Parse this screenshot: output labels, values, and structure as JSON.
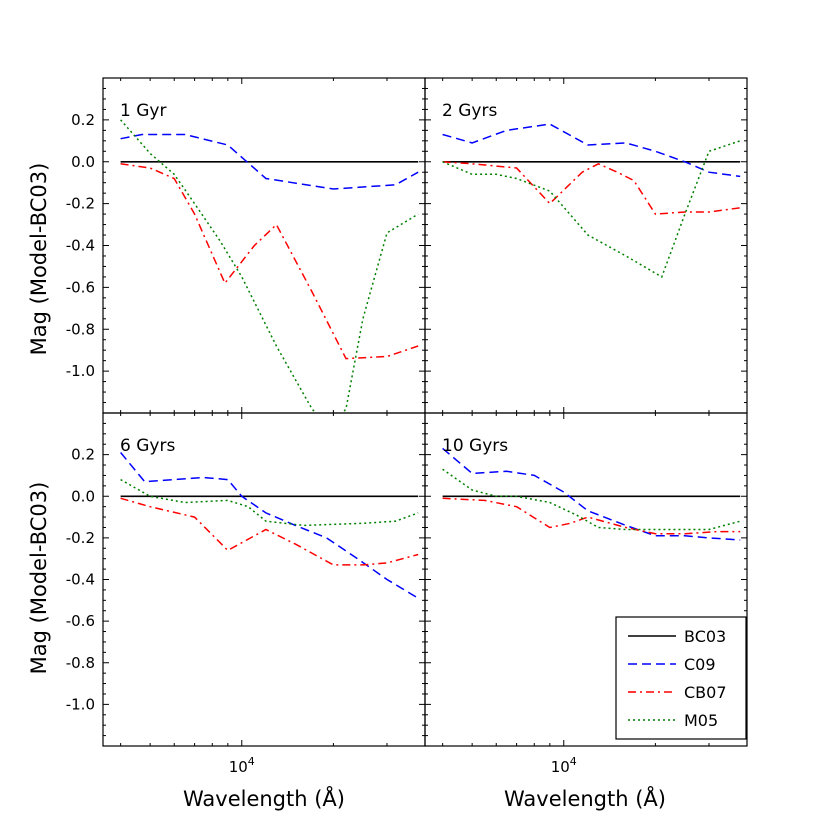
{
  "chart_data": {
    "type": "line",
    "ylabel": "Mag (Model-BC03)",
    "xlabel": "Wavelength (Å)",
    "x_scale": "log",
    "xlim": [
      3500,
      40000
    ],
    "ylim": [
      -1.2,
      0.4
    ],
    "y_ticks": [
      "0.2",
      "0.0",
      "-0.2",
      "-0.4",
      "-0.6",
      "-0.8",
      "-1.0"
    ],
    "y_tick_values": [
      0.2,
      0.0,
      -0.2,
      -0.4,
      -0.6,
      -0.8,
      -1.0
    ],
    "x_tick_label": "10",
    "x_tick_exponent": "4",
    "x_tick_value": 10000,
    "legend_position": "lower right",
    "legend": [
      {
        "name": "BC03",
        "color": "#000000",
        "style": "solid"
      },
      {
        "name": "C09",
        "color": "#0000ff",
        "style": "dashed"
      },
      {
        "name": "CB07",
        "color": "#ff0000",
        "style": "dashdot"
      },
      {
        "name": "M05",
        "color": "#008000",
        "style": "dotted"
      }
    ],
    "panels": [
      {
        "label": "1 Gyr",
        "series": [
          {
            "name": "BC03",
            "x": [
              4000,
              38000
            ],
            "y": [
              0.0,
              0.0
            ]
          },
          {
            "name": "C09",
            "x": [
              4000,
              4700,
              5500,
              6500,
              9000,
              12000,
              20000,
              32000,
              38000
            ],
            "y": [
              0.11,
              0.13,
              0.13,
              0.13,
              0.08,
              -0.08,
              -0.13,
              -0.11,
              -0.05
            ]
          },
          {
            "name": "CB07",
            "x": [
              4000,
              5000,
              6000,
              7000,
              8800,
              11000,
              13000,
              17000,
              22000,
              30000,
              38000
            ],
            "y": [
              -0.01,
              -0.03,
              -0.08,
              -0.25,
              -0.58,
              -0.4,
              -0.3,
              -0.62,
              -0.94,
              -0.93,
              -0.88
            ]
          },
          {
            "name": "M05",
            "x": [
              4000,
              5000,
              6000,
              7000,
              8500,
              10000,
              13000,
              17000,
              19500,
              22000,
              25000,
              30000,
              38000
            ],
            "y": [
              0.2,
              0.04,
              -0.06,
              -0.2,
              -0.38,
              -0.55,
              -0.88,
              -1.18,
              -1.28,
              -1.18,
              -0.75,
              -0.34,
              -0.25
            ]
          }
        ]
      },
      {
        "label": "2 Gyrs",
        "series": [
          {
            "name": "BC03",
            "x": [
              4000,
              38000
            ],
            "y": [
              0.0,
              0.0
            ]
          },
          {
            "name": "C09",
            "x": [
              4000,
              5000,
              6500,
              9000,
              12000,
              16000,
              20000,
              25000,
              30000,
              38000
            ],
            "y": [
              0.13,
              0.09,
              0.15,
              0.18,
              0.08,
              0.09,
              0.05,
              0.0,
              -0.05,
              -0.07
            ]
          },
          {
            "name": "CB07",
            "x": [
              4000,
              5000,
              7000,
              9000,
              11500,
              13000,
              15000,
              17000,
              20000,
              25000,
              30000,
              38000
            ],
            "y": [
              0.0,
              -0.01,
              -0.03,
              -0.2,
              -0.05,
              -0.01,
              -0.05,
              -0.09,
              -0.25,
              -0.24,
              -0.24,
              -0.22
            ]
          },
          {
            "name": "M05",
            "x": [
              4000,
              5000,
              6000,
              7000,
              9000,
              12000,
              16000,
              21000,
              25000,
              30000,
              38000
            ],
            "y": [
              0.0,
              -0.06,
              -0.06,
              -0.08,
              -0.14,
              -0.35,
              -0.45,
              -0.55,
              -0.25,
              0.05,
              0.1
            ]
          }
        ]
      },
      {
        "label": "6 Gyrs",
        "series": [
          {
            "name": "BC03",
            "x": [
              4000,
              38000
            ],
            "y": [
              0.0,
              0.0
            ]
          },
          {
            "name": "C09",
            "x": [
              4000,
              4800,
              6000,
              7500,
              9000,
              10000,
              12000,
              15000,
              19000,
              24000,
              30000,
              38000
            ],
            "y": [
              0.21,
              0.07,
              0.08,
              0.09,
              0.08,
              0.0,
              -0.08,
              -0.14,
              -0.2,
              -0.3,
              -0.4,
              -0.49
            ]
          },
          {
            "name": "CB07",
            "x": [
              4000,
              5000,
              7000,
              9000,
              12000,
              15000,
              20000,
              25000,
              30000,
              38000
            ],
            "y": [
              -0.01,
              -0.05,
              -0.1,
              -0.26,
              -0.16,
              -0.23,
              -0.33,
              -0.33,
              -0.32,
              -0.28
            ]
          },
          {
            "name": "M05",
            "x": [
              4000,
              5000,
              6500,
              9000,
              10500,
              12000,
              16000,
              25000,
              32000,
              38000
            ],
            "y": [
              0.08,
              0.0,
              -0.03,
              -0.02,
              -0.05,
              -0.12,
              -0.14,
              -0.13,
              -0.12,
              -0.08
            ]
          }
        ]
      },
      {
        "label": "10 Gyrs",
        "series": [
          {
            "name": "BC03",
            "x": [
              4000,
              38000
            ],
            "y": [
              0.0,
              0.0
            ]
          },
          {
            "name": "C09",
            "x": [
              4000,
              5000,
              6500,
              8000,
              10000,
              12000,
              16000,
              20000,
              25000,
              30000,
              38000
            ],
            "y": [
              0.23,
              0.11,
              0.12,
              0.1,
              0.02,
              -0.07,
              -0.14,
              -0.19,
              -0.19,
              -0.2,
              -0.21
            ]
          },
          {
            "name": "CB07",
            "x": [
              4000,
              5500,
              7000,
              9000,
              10500,
              12000,
              16000,
              20000,
              25000,
              32000,
              38000
            ],
            "y": [
              -0.01,
              -0.02,
              -0.05,
              -0.15,
              -0.13,
              -0.1,
              -0.15,
              -0.18,
              -0.18,
              -0.17,
              -0.17
            ]
          },
          {
            "name": "M05",
            "x": [
              4000,
              5000,
              6000,
              7000,
              9000,
              11000,
              13000,
              16000,
              20000,
              25000,
              30000,
              38000
            ],
            "y": [
              0.13,
              0.03,
              0.0,
              0.0,
              -0.03,
              -0.09,
              -0.15,
              -0.16,
              -0.16,
              -0.16,
              -0.16,
              -0.12
            ]
          }
        ]
      }
    ]
  }
}
